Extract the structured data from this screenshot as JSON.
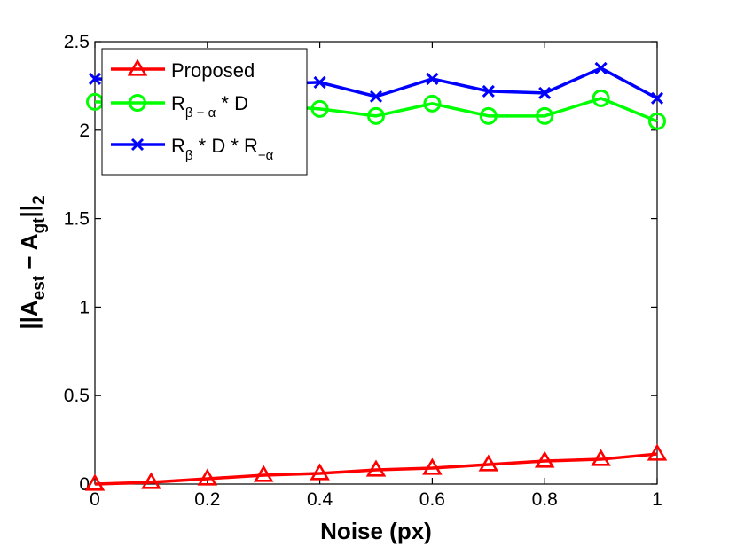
{
  "chart_data": {
    "type": "line",
    "xlabel": "Noise (px)",
    "ylabel": {
      "prefix": "||A",
      "sub1": "est",
      "middle": " − A",
      "sub2": "gt",
      "suffix": "||",
      "sub3": "2"
    },
    "xlim": [
      0,
      1
    ],
    "ylim": [
      0,
      2.5
    ],
    "xticks": [
      "0",
      "0.2",
      "0.4",
      "0.6",
      "0.8",
      "1"
    ],
    "yticks": [
      "0",
      "0.5",
      "1",
      "1.5",
      "2",
      "2.5"
    ],
    "grid": false,
    "legend_position": "top-left",
    "x": [
      0,
      0.1,
      0.2,
      0.3,
      0.4,
      0.5,
      0.6,
      0.7,
      0.8,
      0.9,
      1.0
    ],
    "series": [
      {
        "name": "Proposed",
        "legend": {
          "main": "Proposed"
        },
        "color": "#ff0000",
        "marker": "triangle",
        "values": [
          0.0,
          0.01,
          0.03,
          0.05,
          0.06,
          0.08,
          0.09,
          0.11,
          0.13,
          0.14,
          0.17
        ]
      },
      {
        "name": "Rβ − α * D",
        "legend": {
          "main": "R",
          "sub": "β − α",
          "rest": " * D"
        },
        "color": "#00ff00",
        "marker": "circle",
        "values": [
          2.16,
          2.15,
          2.15,
          2.14,
          2.12,
          2.08,
          2.15,
          2.08,
          2.08,
          2.18,
          2.05
        ]
      },
      {
        "name": "Rβ * D * R−α",
        "legend": {
          "main": "R",
          "sub": "β",
          "rest": " * D * R",
          "sub2": "−α"
        },
        "color": "#0000ff",
        "marker": "x",
        "values": [
          2.29,
          2.28,
          2.27,
          2.26,
          2.27,
          2.19,
          2.29,
          2.22,
          2.21,
          2.35,
          2.18
        ]
      }
    ]
  }
}
